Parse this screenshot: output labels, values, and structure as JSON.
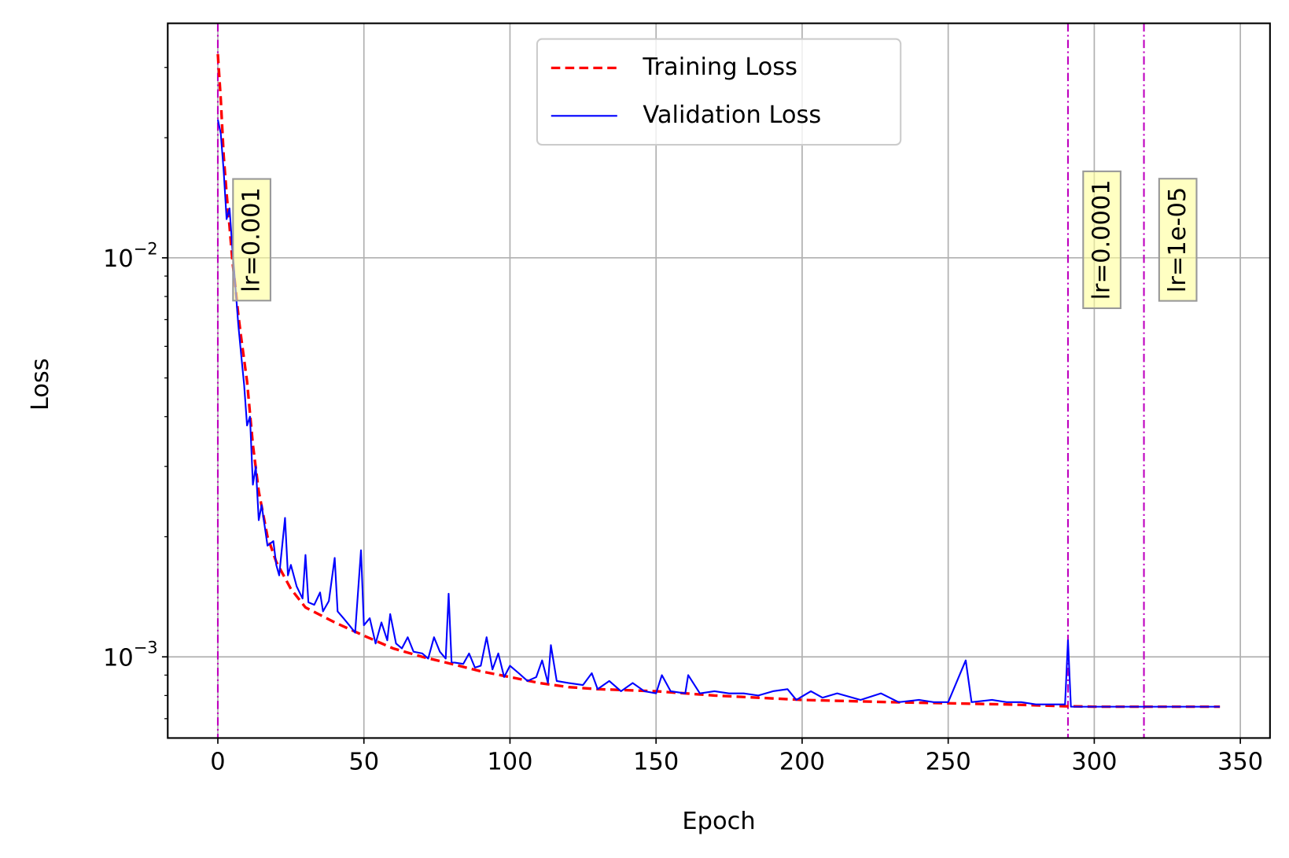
{
  "chart_data": {
    "type": "line",
    "xlabel": "Epoch",
    "ylabel": "Loss",
    "xlim": [
      -17.15,
      360.15
    ],
    "xticks": [
      0,
      50,
      100,
      150,
      200,
      250,
      300,
      350
    ],
    "ylim": [
      0.000626,
      0.0387
    ],
    "yscale": "log",
    "yticks": [
      {
        "value": 0.001,
        "label": "10",
        "exponent": "−3"
      },
      {
        "value": 0.01,
        "label": "10",
        "exponent": "−2"
      }
    ],
    "yminorticks": [
      0.0007,
      0.0008,
      0.0009,
      0.002,
      0.003,
      0.004,
      0.005,
      0.006,
      0.007,
      0.008,
      0.009,
      0.02,
      0.03
    ],
    "grid": true,
    "legend": "upper center",
    "vlines": [
      0,
      291,
      317
    ],
    "vline_color": "#bf00bf",
    "annotations": [
      {
        "text": "lr=0.001",
        "x": 0
      },
      {
        "text": "lr=0.0001",
        "x": 291
      },
      {
        "text": "lr=1e-05",
        "x": 317
      }
    ],
    "series": [
      {
        "name": "Training Loss",
        "color": "#ff0000",
        "dash": true,
        "x": [
          0,
          1,
          2,
          3,
          4,
          5,
          6,
          7,
          8,
          10,
          12,
          14,
          17,
          20,
          25,
          30,
          40,
          50,
          60,
          70,
          80,
          90,
          100,
          110,
          120,
          130,
          150,
          170,
          200,
          230,
          250,
          270,
          290,
          291,
          300,
          320,
          343
        ],
        "values": [
          0.0324,
          0.025,
          0.018,
          0.0145,
          0.012,
          0.0098,
          0.0085,
          0.0072,
          0.0063,
          0.0049,
          0.0034,
          0.0026,
          0.002,
          0.00173,
          0.00148,
          0.00133,
          0.00122,
          0.00113,
          0.00105,
          0.001,
          0.00096,
          0.00092,
          0.00089,
          0.00086,
          0.00084,
          0.00083,
          0.00082,
          0.0008,
          0.00078,
          0.00077,
          0.000765,
          0.00076,
          0.000752,
          0.000752,
          0.00075,
          0.00075,
          0.00075
        ]
      },
      {
        "name": "Validation Loss",
        "color": "#0000ff",
        "dash": false,
        "x": [
          0,
          1,
          2,
          3,
          4,
          5,
          6,
          7,
          8,
          9,
          10,
          11,
          12,
          13,
          14,
          15,
          17,
          19,
          20,
          21,
          23,
          24,
          25,
          27,
          29,
          30,
          31,
          33,
          35,
          36,
          38,
          40,
          41,
          43,
          45,
          47,
          49,
          50,
          52,
          54,
          56,
          58,
          59,
          61,
          63,
          65,
          67,
          70,
          72,
          74,
          76,
          78,
          79,
          80,
          84,
          86,
          88,
          90,
          92,
          94,
          96,
          98,
          100,
          103,
          106,
          109,
          111,
          113,
          114,
          116,
          120,
          125,
          128,
          130,
          134,
          138,
          142,
          146,
          150,
          152,
          155,
          160,
          161,
          165,
          170,
          175,
          180,
          185,
          190,
          195,
          198,
          203,
          207,
          212,
          220,
          227,
          233,
          240,
          245,
          250,
          256,
          258,
          265,
          270,
          275,
          280,
          288,
          290,
          291,
          292,
          300,
          320,
          343
        ],
        "values": [
          0.0222,
          0.0205,
          0.0165,
          0.0125,
          0.0133,
          0.0105,
          0.0085,
          0.0068,
          0.0057,
          0.0048,
          0.0038,
          0.004,
          0.0027,
          0.003,
          0.0022,
          0.0024,
          0.0019,
          0.00195,
          0.0017,
          0.0016,
          0.00223,
          0.0016,
          0.0017,
          0.0015,
          0.0014,
          0.0018,
          0.00137,
          0.00135,
          0.00145,
          0.0013,
          0.00138,
          0.00177,
          0.0013,
          0.00125,
          0.0012,
          0.00115,
          0.00185,
          0.0012,
          0.00125,
          0.00108,
          0.00122,
          0.0011,
          0.00128,
          0.00108,
          0.00105,
          0.00112,
          0.00103,
          0.00102,
          0.00099,
          0.00112,
          0.00103,
          0.00099,
          0.00144,
          0.00097,
          0.00096,
          0.00102,
          0.00094,
          0.00095,
          0.00112,
          0.00093,
          0.00102,
          0.00089,
          0.00095,
          0.00091,
          0.00087,
          0.00089,
          0.00098,
          0.00086,
          0.00107,
          0.00087,
          0.00086,
          0.00085,
          0.00091,
          0.00083,
          0.00087,
          0.00082,
          0.00086,
          0.00082,
          0.00081,
          0.0009,
          0.00082,
          0.00081,
          0.0009,
          0.00081,
          0.00082,
          0.00081,
          0.00081,
          0.0008,
          0.00082,
          0.00083,
          0.00078,
          0.00082,
          0.00079,
          0.00081,
          0.00078,
          0.00081,
          0.00077,
          0.00078,
          0.00077,
          0.00077,
          0.00098,
          0.00077,
          0.00078,
          0.00077,
          0.00077,
          0.00076,
          0.00076,
          0.00076,
          0.0011,
          0.00075,
          0.00075,
          0.00075,
          0.00075
        ]
      }
    ]
  }
}
